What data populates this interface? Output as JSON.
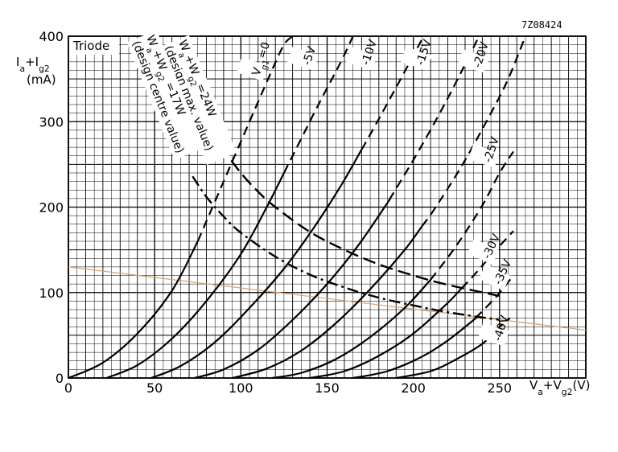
{
  "figure_code": "7Z08424",
  "chart_data": {
    "type": "line",
    "title": "Triode",
    "xlabel_parts": [
      "V",
      "a",
      "+V",
      "g2",
      "(V)"
    ],
    "ylabel_parts": [
      "I",
      "a",
      "+I",
      "g2",
      "(mA)"
    ],
    "xlim": [
      0,
      300
    ],
    "ylim": [
      0,
      400
    ],
    "x_ticks": [
      "0",
      "50",
      "100",
      "150",
      "200",
      "250"
    ],
    "y_ticks": [
      "0",
      "100",
      "200",
      "300",
      "400"
    ],
    "grid": true,
    "series": [
      {
        "name": "Vg1=0",
        "label_parts": [
          "V",
          "g1",
          "=0"
        ],
        "points": [
          [
            0,
            0
          ],
          [
            20,
            18
          ],
          [
            40,
            52
          ],
          [
            60,
            102
          ],
          [
            75,
            160
          ],
          [
            90,
            230
          ],
          [
            105,
            300
          ],
          [
            118,
            360
          ],
          [
            125,
            390
          ],
          [
            130,
            400
          ]
        ],
        "dashed_from": 75
      },
      {
        "name": "-5V",
        "label_parts": [
          "-5V"
        ],
        "points": [
          [
            22,
            0
          ],
          [
            40,
            15
          ],
          [
            60,
            46
          ],
          [
            80,
            90
          ],
          [
            100,
            145
          ],
          [
            115,
            200
          ],
          [
            130,
            260
          ],
          [
            145,
            320
          ],
          [
            158,
            370
          ],
          [
            165,
            400
          ]
        ],
        "dashed_from": 125
      },
      {
        "name": "-10V",
        "label_parts": [
          "-10V"
        ],
        "points": [
          [
            48,
            0
          ],
          [
            65,
            14
          ],
          [
            85,
            42
          ],
          [
            105,
            82
          ],
          [
            125,
            128
          ],
          [
            142,
            175
          ],
          [
            158,
            225
          ],
          [
            175,
            285
          ],
          [
            190,
            340
          ],
          [
            202,
            385
          ],
          [
            206,
            400
          ]
        ],
        "dashed_from": 170
      },
      {
        "name": "-15V",
        "label_parts": [
          "-15V"
        ],
        "points": [
          [
            73,
            0
          ],
          [
            90,
            10
          ],
          [
            110,
            33
          ],
          [
            130,
            68
          ],
          [
            150,
            110
          ],
          [
            168,
            155
          ],
          [
            185,
            205
          ],
          [
            202,
            262
          ],
          [
            218,
            320
          ],
          [
            232,
            375
          ],
          [
            238,
            400
          ]
        ],
        "dashed_from": 186
      },
      {
        "name": "-20V",
        "label_parts": [
          "-20V"
        ],
        "points": [
          [
            95,
            0
          ],
          [
            115,
            11
          ],
          [
            135,
            32
          ],
          [
            155,
            64
          ],
          [
            175,
            104
          ],
          [
            195,
            150
          ],
          [
            212,
            197
          ],
          [
            228,
            248
          ],
          [
            245,
            310
          ],
          [
            255,
            350
          ],
          [
            265,
            400
          ]
        ],
        "dashed_from": 205
      },
      {
        "name": "-25V",
        "label_parts": [
          "-25V"
        ],
        "points": [
          [
            118,
            0
          ],
          [
            135,
            6
          ],
          [
            155,
            22
          ],
          [
            175,
            48
          ],
          [
            195,
            82
          ],
          [
            210,
            115
          ],
          [
            225,
            155
          ],
          [
            240,
            202
          ],
          [
            250,
            240
          ],
          [
            258,
            265
          ]
        ],
        "dashed_from": 210
      },
      {
        "name": "-30V",
        "label_parts": [
          "-30V"
        ],
        "points": [
          [
            140,
            0
          ],
          [
            160,
            8
          ],
          [
            180,
            26
          ],
          [
            200,
            52
          ],
          [
            220,
            88
          ],
          [
            235,
            120
          ],
          [
            248,
            150
          ],
          [
            258,
            172
          ]
        ],
        "dashed_from": 228
      },
      {
        "name": "-35V",
        "label_parts": [
          "-35V"
        ],
        "points": [
          [
            165,
            0
          ],
          [
            185,
            8
          ],
          [
            205,
            25
          ],
          [
            220,
            44
          ],
          [
            235,
            68
          ],
          [
            248,
            95
          ],
          [
            258,
            120
          ]
        ],
        "dashed_from": 236
      },
      {
        "name": "-40V",
        "label_parts": [
          "-40V"
        ],
        "points": [
          [
            190,
            0
          ],
          [
            210,
            8
          ],
          [
            225,
            22
          ],
          [
            240,
            40
          ],
          [
            250,
            60
          ],
          [
            256,
            70
          ]
        ],
        "dashed_from": 248
      }
    ],
    "power_limits": [
      {
        "name": "Wa+Wg2=24W (design max. value)",
        "label_parts": [
          "W",
          "a",
          "+W",
          "g2",
          "=24W"
        ],
        "sublabel": "(design max. value)",
        "style": "long-dash",
        "points": [
          [
            88,
            272
          ],
          [
            100,
            240
          ],
          [
            110,
            218
          ],
          [
            120,
            200
          ],
          [
            140,
            171
          ],
          [
            160,
            150
          ],
          [
            180,
            133
          ],
          [
            200,
            120
          ],
          [
            220,
            109
          ],
          [
            250,
            96
          ]
        ]
      },
      {
        "name": "Wa+Wg2 =17W (design centre value)",
        "label_parts": [
          "W",
          "a",
          "+W",
          "g2",
          " =17W"
        ],
        "sublabel": "(design centre value)",
        "style": "dash-dot",
        "points": [
          [
            72,
            236
          ],
          [
            80,
            212
          ],
          [
            90,
            189
          ],
          [
            100,
            170
          ],
          [
            120,
            142
          ],
          [
            140,
            121
          ],
          [
            160,
            106
          ],
          [
            180,
            94
          ],
          [
            200,
            85
          ],
          [
            220,
            77
          ],
          [
            250,
            68
          ]
        ]
      }
    ],
    "load_line": {
      "color": "#d8a070",
      "points": [
        [
          0,
          130
        ],
        [
          300,
          56
        ]
      ]
    }
  }
}
